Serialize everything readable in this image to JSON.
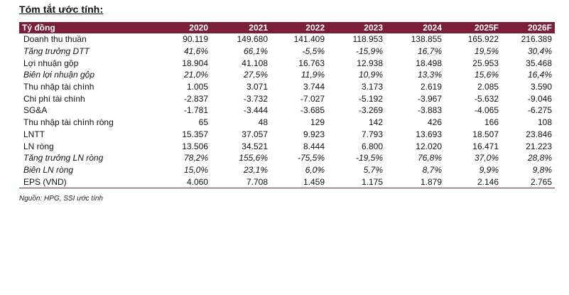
{
  "title": "Tóm tắt ước tính:",
  "table": {
    "headers": [
      "Tỷ đồng",
      "2020",
      "2021",
      "2022",
      "2023",
      "2024",
      "2025F",
      "2026F"
    ],
    "rows": [
      {
        "label": "Doanh thu thuần",
        "italic": false,
        "values": [
          "90.119",
          "149.680",
          "141.409",
          "118.953",
          "138.855",
          "165.922",
          "216.389"
        ]
      },
      {
        "label": "Tăng trưởng DTT",
        "italic": true,
        "values": [
          "41,6%",
          "66,1%",
          "-5,5%",
          "-15,9%",
          "16,7%",
          "19,5%",
          "30,4%"
        ]
      },
      {
        "label": "Lợi nhuận gộp",
        "italic": false,
        "values": [
          "18.904",
          "41.108",
          "16.763",
          "12.938",
          "18.498",
          "25.953",
          "35.468"
        ]
      },
      {
        "label": "Biên lợi nhuận gộp",
        "italic": true,
        "values": [
          "21,0%",
          "27,5%",
          "11,9%",
          "10,9%",
          "13,3%",
          "15,6%",
          "16,4%"
        ]
      },
      {
        "label": "Thu nhập tài chính",
        "italic": false,
        "values": [
          "1.005",
          "3.071",
          "3.744",
          "3.173",
          "2.619",
          "2.085",
          "3.590"
        ]
      },
      {
        "label": "Chi phí tài chính",
        "italic": false,
        "values": [
          "-2.837",
          "-3.732",
          "-7.027",
          "-5.192",
          "-3.967",
          "-5.632",
          "-9.046"
        ]
      },
      {
        "label": "SG&A",
        "italic": false,
        "values": [
          "-1.781",
          "-3.444",
          "-3.685",
          "-3.269",
          "-3.883",
          "-4.065",
          "-6.275"
        ]
      },
      {
        "label": "Thu nhập tài chính ròng",
        "italic": false,
        "values": [
          "65",
          "48",
          "129",
          "142",
          "426",
          "166",
          "108"
        ]
      },
      {
        "label": "LNTT",
        "italic": false,
        "values": [
          "15.357",
          "37.057",
          "9.923",
          "7.793",
          "13.693",
          "18.507",
          "23.846"
        ]
      },
      {
        "label": "LN ròng",
        "italic": false,
        "values": [
          "13.506",
          "34.521",
          "8.444",
          "6.800",
          "12.020",
          "16.471",
          "21.223"
        ]
      },
      {
        "label": "Tăng trưởng LN ròng",
        "italic": true,
        "values": [
          "78,2%",
          "155,6%",
          "-75,5%",
          "-19,5%",
          "76,8%",
          "37,0%",
          "28,8%"
        ]
      },
      {
        "label": "Biên LN ròng",
        "italic": true,
        "values": [
          "15,0%",
          "23,1%",
          "6,0%",
          "5,7%",
          "8,7%",
          "9,9%",
          "9,8%"
        ]
      },
      {
        "label": "EPS (VND)",
        "italic": false,
        "values": [
          "4.060",
          "7.708",
          "1.459",
          "1.175",
          "1.879",
          "2.146",
          "2.765"
        ]
      }
    ]
  },
  "source": "Nguồn: HPG, SSI ước tính"
}
